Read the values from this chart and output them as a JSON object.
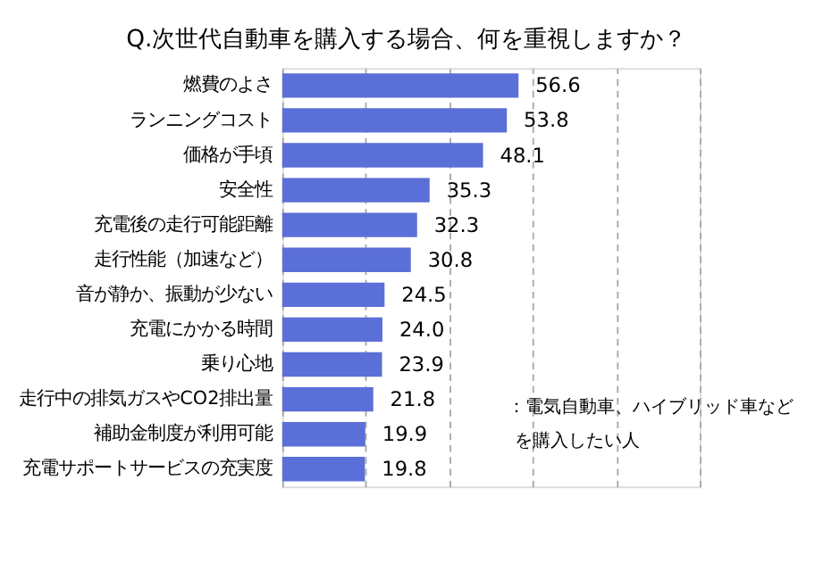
{
  "chart_data": {
    "type": "bar",
    "orientation": "horizontal",
    "title": "Q.次世代自動車を購入する場合、何を重視しますか？",
    "categories": [
      "燃費のよさ",
      "ランニングコスト",
      "価格が手頃",
      "安全性",
      "充電後の走行可能距離",
      "走行性能（加速など）",
      "音が静か、振動が少ない",
      "充電にかかる時間",
      "乗り心地",
      "走行中の排気ガスやCO2排出量",
      "補助金制度が利用可能",
      "充電サポートサービスの充実度"
    ],
    "values": [
      56.6,
      53.8,
      48.1,
      35.3,
      32.3,
      30.8,
      24.5,
      24.0,
      23.9,
      21.8,
      19.9,
      19.8
    ],
    "value_labels": [
      "56.6",
      "53.8",
      "48.1",
      "35.3",
      "32.3",
      "30.8",
      "24.5",
      "24.0",
      "23.9",
      "21.8",
      "19.9",
      "19.8"
    ],
    "color": "#5b6fd8",
    "xlim": [
      0,
      100
    ],
    "xticks": [
      0,
      20,
      40,
      60,
      80,
      100
    ],
    "tick_labels": "y",
    "grid": "x",
    "annotations": [
      "：電気自動車、ハイブリッド車など",
      "を購入したい人"
    ]
  }
}
